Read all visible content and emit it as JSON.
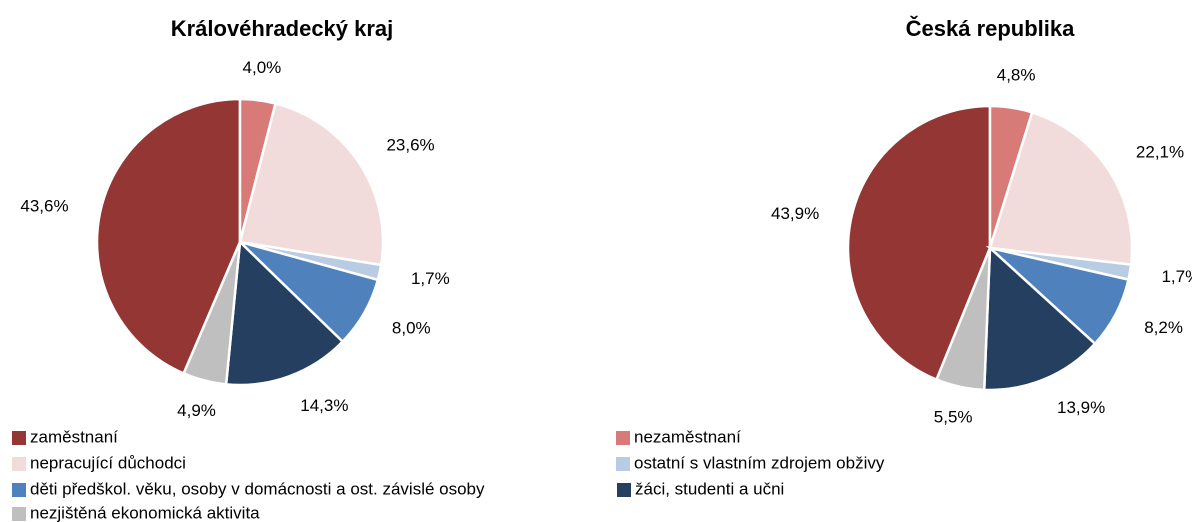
{
  "chart_data": [
    {
      "type": "pie",
      "title": "Královéhradecký kraj",
      "categories": [
        "zaměstnaní",
        "nezaměstnaní",
        "nepracující důchodci",
        "ostatní s vlastním zdrojem obživy",
        "děti předškol. věku, osoby v domácnosti a ost. závislé osoby",
        "žáci, studenti a učni",
        "nezjištěná ekonomická aktivita"
      ],
      "values": [
        43.6,
        4.0,
        23.6,
        1.7,
        8.0,
        14.3,
        4.9
      ],
      "value_labels": [
        "43,6%",
        "4,0%",
        "23,6%",
        "1,7%",
        "8,0%",
        "14,3%",
        "4,9%"
      ],
      "colors": [
        "#943634",
        "#d87a78",
        "#f2dcdb",
        "#b8cce4",
        "#4f81bd",
        "#243f60",
        "#bfbfbf"
      ]
    },
    {
      "type": "pie",
      "title": "Česká republika",
      "categories": [
        "zaměstnaní",
        "nezaměstnaní",
        "nepracující důchodci",
        "ostatní s vlastním zdrojem obživy",
        "děti předškol. věku, osoby v domácnosti a ost. závislé osoby",
        "žáci, studenti a učni",
        "nezjištěná ekonomická aktivita"
      ],
      "values": [
        43.9,
        4.8,
        22.1,
        1.7,
        8.2,
        13.9,
        5.5
      ],
      "value_labels": [
        "43,9%",
        "4,8%",
        "22,1%",
        "1,7%",
        "8,2%",
        "13,9%",
        "5,5%"
      ],
      "colors": [
        "#943634",
        "#d87a78",
        "#f2dcdb",
        "#b8cce4",
        "#4f81bd",
        "#243f60",
        "#bfbfbf"
      ]
    }
  ]
}
